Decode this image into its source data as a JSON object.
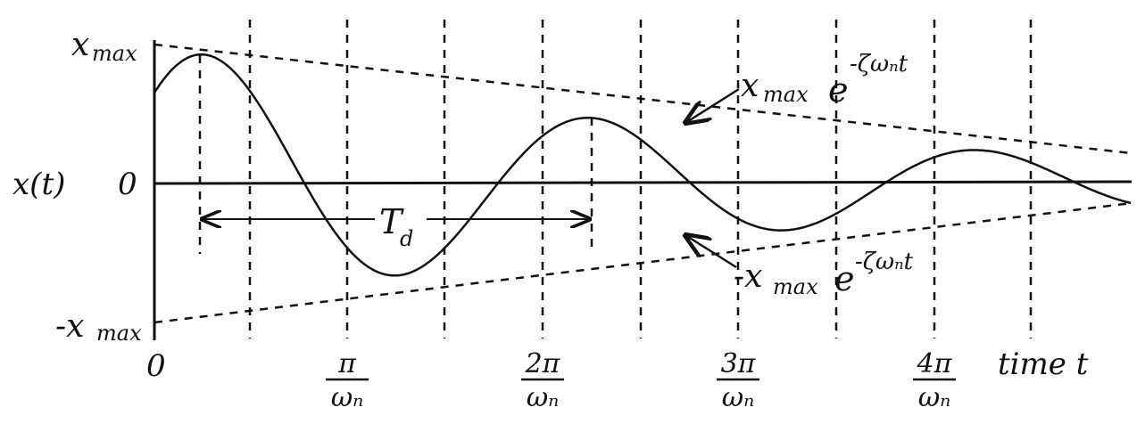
{
  "labels": {
    "x_max": "x",
    "x_max_sub": "max",
    "neg_x_max": "-x",
    "neg_x_max_sub": "max",
    "y_axis": "x(t)",
    "zero_y": "0",
    "zero_x": "0",
    "time_axis": "time t",
    "period": "T",
    "period_sub": "d",
    "upper_envelope": "x",
    "upper_envelope_sub": "max",
    "upper_envelope_exp": "e",
    "upper_envelope_power": "-ζωₙt",
    "lower_envelope": "-x",
    "lower_envelope_sub": "max",
    "lower_envelope_exp": "e",
    "lower_envelope_power": "-ζωₙt"
  },
  "ticks": [
    {
      "num": "π",
      "den": "ωₙ"
    },
    {
      "num": "2π",
      "den": "ωₙ"
    },
    {
      "num": "3π",
      "den": "ωₙ"
    },
    {
      "num": "4π",
      "den": "ωₙ"
    }
  ],
  "colors": {
    "ink": "#111111",
    "background": "#ffffff"
  }
}
